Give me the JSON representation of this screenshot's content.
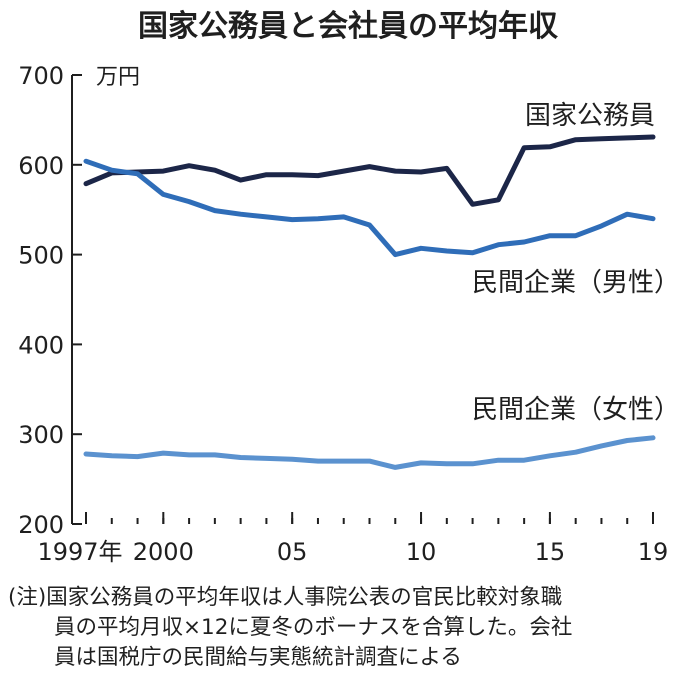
{
  "chart_data": {
    "type": "line",
    "title": "国家公務員と会社員の平均年収",
    "ylabel": "万円",
    "ylim": [
      200,
      700
    ],
    "y_ticks": [
      200,
      300,
      400,
      500,
      600,
      700
    ],
    "x": [
      1997,
      1998,
      1999,
      2000,
      2001,
      2002,
      2003,
      2004,
      2005,
      2006,
      2007,
      2008,
      2009,
      2010,
      2011,
      2012,
      2013,
      2014,
      2015,
      2016,
      2017,
      2018,
      2019
    ],
    "x_tick_values": [
      1997,
      2000,
      2005,
      2010,
      2015,
      2019
    ],
    "x_tick_labels": [
      "1997年",
      "2000",
      "05",
      "10",
      "15",
      "19"
    ],
    "grid": false,
    "series": [
      {
        "name": "国家公務員",
        "color": "#1c2648",
        "values": [
          579,
          591,
          592,
          593,
          599,
          594,
          583,
          589,
          589,
          588,
          593,
          598,
          593,
          592,
          596,
          556,
          561,
          619,
          620,
          628,
          629,
          630,
          631
        ]
      },
      {
        "name": "民間企業（男性）",
        "color": "#2f6db8",
        "values": [
          604,
          594,
          590,
          567,
          559,
          549,
          545,
          542,
          539,
          540,
          542,
          533,
          500,
          507,
          504,
          502,
          511,
          514,
          521,
          521,
          532,
          545,
          540
        ]
      },
      {
        "name": "民間企業（女性）",
        "color": "#5b92cf",
        "values": [
          278,
          276,
          275,
          279,
          277,
          277,
          274,
          273,
          272,
          270,
          270,
          270,
          263,
          268,
          267,
          267,
          271,
          271,
          276,
          280,
          287,
          293,
          296
        ]
      }
    ]
  },
  "note": {
    "line1": "(注)国家公務員の平均年収は人事院公表の官民比較対象職",
    "line2": "員の平均月収×12に夏冬のボーナスを合算した。会社",
    "line3": "員は国税庁の民間給与実態統計調査による"
  }
}
